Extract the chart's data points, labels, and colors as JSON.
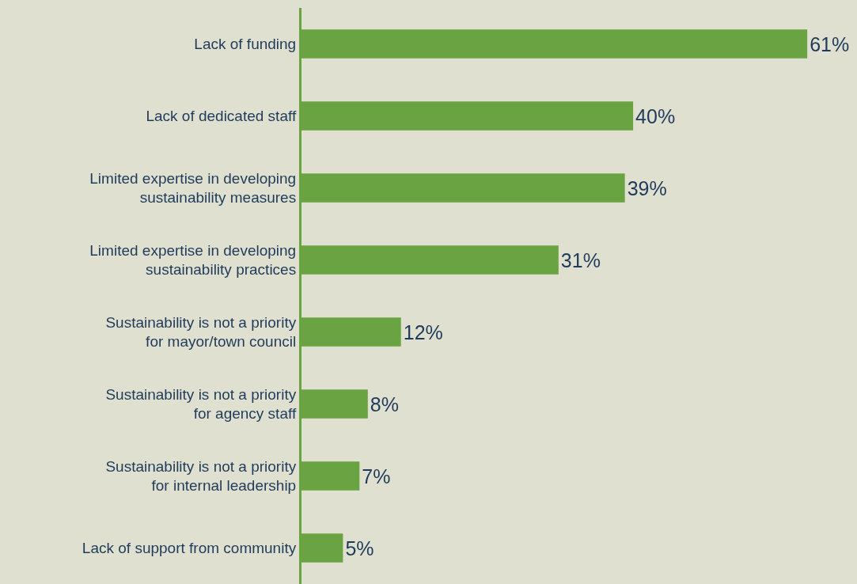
{
  "chart_data": {
    "type": "bar",
    "orientation": "horizontal",
    "categories": [
      "Lack of funding",
      "Lack of dedicated staff",
      "Limited expertise in developing sustainability measures",
      "Limited expertise in developing sustainability practices",
      "Sustainability is not a priority for mayor/town council",
      "Sustainability is not a priority for agency staff",
      "Sustainability is not a priority for internal leadership",
      "Lack of support from community"
    ],
    "values": [
      61,
      40,
      39,
      31,
      12,
      8,
      7,
      5
    ],
    "value_labels": [
      "61%",
      "40%",
      "39%",
      "31%",
      "12%",
      "8%",
      "7%",
      "5%"
    ],
    "color": "#6aa341",
    "xlim": [
      0,
      67
    ],
    "tick_labels": "y"
  }
}
